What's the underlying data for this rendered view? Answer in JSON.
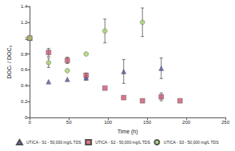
{
  "chart_data": {
    "type": "scatter",
    "x_label": "Time (h)",
    "y_label": "DOCₜ / DOC₀",
    "xlim": [
      0,
      250
    ],
    "xticks": [
      0,
      50,
      100,
      150,
      200,
      250
    ],
    "ylim": [
      0,
      1.4
    ],
    "yticks": [
      0,
      0.2,
      0.4,
      0.6,
      0.8,
      1,
      1.2,
      1.4
    ],
    "grid": false,
    "legend": "bottom",
    "series": [
      {
        "name": "UTICA - S1 - 50,000 mg/L TDS",
        "color": "#5156a3",
        "marker": "triangle",
        "x": [
          0,
          24,
          48,
          72,
          120,
          168
        ],
        "values": [
          1.0,
          0.45,
          0.48,
          0.5,
          0.58,
          0.62
        ],
        "errors": [
          null,
          null,
          null,
          0.03,
          0.15,
          0.13
        ]
      },
      {
        "name": "UTICA - S2 - 50,000 mg/L TDS",
        "color": "#c9566f",
        "marker": "square",
        "x": [
          0,
          24,
          48,
          72,
          96,
          120,
          144,
          168,
          192
        ],
        "values": [
          1.0,
          0.82,
          0.72,
          0.53,
          0.37,
          0.25,
          0.21,
          0.26,
          0.21
        ],
        "errors": [
          null,
          0.05,
          0.04,
          0.03,
          null,
          null,
          null,
          0.05,
          null
        ]
      },
      {
        "name": "UTICA - S3 - 50,000 mg/L TDS",
        "color": "#a9d06b",
        "marker": "circle",
        "x": [
          0,
          24,
          48,
          72,
          96,
          144
        ],
        "values": [
          1.0,
          0.69,
          0.59,
          0.8,
          1.09,
          1.2
        ],
        "errors": [
          null,
          0.06,
          null,
          null,
          0.15,
          0.18
        ]
      }
    ]
  }
}
